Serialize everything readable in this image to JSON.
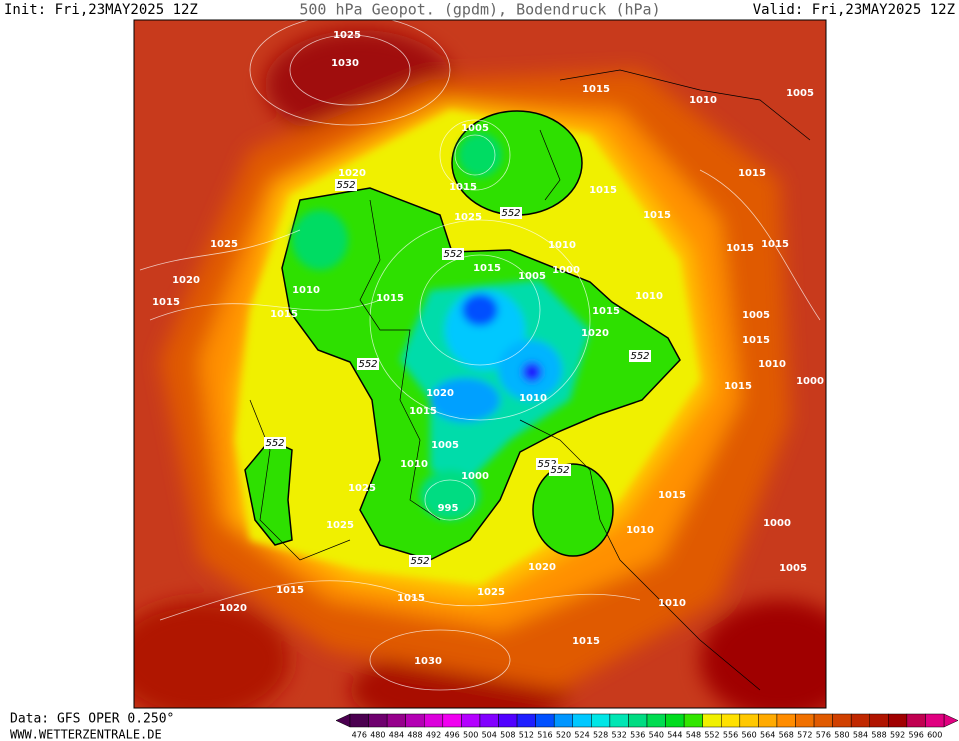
{
  "header": {
    "init": "Init: Fri,23MAY2025 12Z",
    "title": "500 hPa Geopot. (gpdm), Bodendruck (hPa)",
    "valid": "Valid: Fri,23MAY2025 12Z"
  },
  "footer": {
    "source": "Data: GFS OPER 0.250°",
    "site": "WWW.WETTERZENTRALE.DE"
  },
  "map": {
    "isobar_labels": [
      "1025",
      "1030",
      "1005",
      "1015",
      "1025",
      "1020",
      "1025",
      "1020",
      "1015",
      "1010",
      "1015",
      "1015",
      "1015",
      "1005",
      "1000",
      "1010",
      "1015",
      "1015",
      "1015",
      "1010",
      "1005",
      "1015",
      "1015",
      "1015",
      "1010",
      "1015",
      "1020",
      "1005",
      "1015",
      "1010",
      "1000",
      "1015",
      "1020",
      "1015",
      "1010",
      "1005",
      "1010",
      "1000",
      "995",
      "1025",
      "1025",
      "1015",
      "1010",
      "1000",
      "1005",
      "1020",
      "1015",
      "1015",
      "1025",
      "1010",
      "1020",
      "1015",
      "1030"
    ],
    "height_labels": [
      "552",
      "552",
      "552",
      "552",
      "552",
      "552",
      "552",
      "552",
      "552"
    ]
  },
  "colorbar": {
    "ticks": [
      476,
      480,
      484,
      488,
      492,
      496,
      500,
      504,
      508,
      512,
      516,
      520,
      524,
      528,
      532,
      536,
      540,
      544,
      548,
      552,
      556,
      560,
      564,
      568,
      572,
      576,
      580,
      584,
      588,
      592,
      596,
      600
    ],
    "colors": [
      "#4b0050",
      "#6e006e",
      "#96008c",
      "#b400b4",
      "#dc00dc",
      "#f000f0",
      "#b400ff",
      "#8200ff",
      "#5000ff",
      "#1e1eff",
      "#0050ff",
      "#0096ff",
      "#00c8ff",
      "#00e6e6",
      "#00e6b4",
      "#00dc82",
      "#00dc50",
      "#00dc1e",
      "#32e600",
      "#f0f000",
      "#ffe100",
      "#ffc800",
      "#ffaa00",
      "#ff8c00",
      "#f07000",
      "#e05a00",
      "#d04000",
      "#c02800",
      "#b01400",
      "#a00000",
      "#c00050",
      "#e00080"
    ]
  }
}
